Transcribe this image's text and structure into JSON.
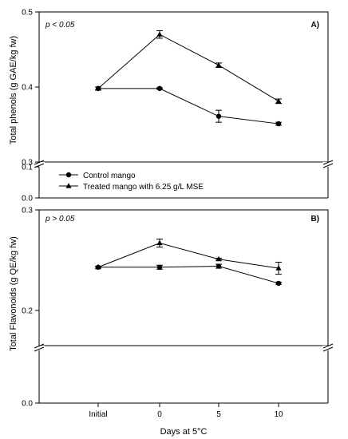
{
  "x_axis": {
    "label": "Days at 5°C",
    "categories": [
      "Initial",
      "0",
      "5",
      "10"
    ]
  },
  "legend": {
    "position": "left, between panels",
    "items": [
      {
        "marker": "circle",
        "label": "Control mango"
      },
      {
        "marker": "triangle",
        "label": "Treated mango with 6.25 g/L MSE"
      }
    ]
  },
  "chart_data": [
    {
      "type": "line",
      "panel_label": "A)",
      "annotation": "p < 0.05",
      "ylabel": "Total phenols (g GAE/kg fw)",
      "ylim": [
        0.3,
        0.5
      ],
      "yticks": [
        "0.3",
        "0.4",
        "0.5"
      ],
      "lower_segment": {
        "ylim": [
          0.0,
          0.1
        ],
        "yticks": [
          "0.0",
          "0.1"
        ]
      },
      "axis_break": true,
      "grid": false,
      "categories": [
        "Initial",
        "0",
        "5",
        "10"
      ],
      "series": [
        {
          "name": "Control mango",
          "marker": "circle",
          "values": [
            0.398,
            0.398,
            0.361,
            0.351
          ],
          "errors": [
            0.002,
            0.001,
            0.008,
            0.002
          ]
        },
        {
          "name": "Treated mango with 6.25 g/L MSE",
          "marker": "triangle",
          "values": [
            0.398,
            0.47,
            0.429,
            0.381
          ],
          "errors": [
            0.002,
            0.005,
            0.003,
            0.003
          ]
        }
      ]
    },
    {
      "type": "line",
      "panel_label": "B)",
      "annotation": "p > 0.05",
      "ylabel": "Total Flavonoids  (g QE/kg fw)",
      "ylim": [
        0.165,
        0.3
      ],
      "yticks": [
        "0.2",
        "0.3"
      ],
      "lower_segment": {
        "ylim": [
          0.0,
          0.1
        ],
        "yticks": [
          "0.0"
        ]
      },
      "axis_break": true,
      "grid": false,
      "categories": [
        "Initial",
        "0",
        "5",
        "10"
      ],
      "series": [
        {
          "name": "Control mango",
          "marker": "circle",
          "values": [
            0.243,
            0.243,
            0.244,
            0.227
          ],
          "errors": [
            0.001,
            0.002,
            0.002,
            0.001
          ]
        },
        {
          "name": "Treated mango with 6.25 g/L MSE",
          "marker": "triangle",
          "values": [
            0.243,
            0.267,
            0.251,
            0.242
          ],
          "errors": [
            0.001,
            0.004,
            0.001,
            0.006
          ]
        }
      ]
    }
  ]
}
